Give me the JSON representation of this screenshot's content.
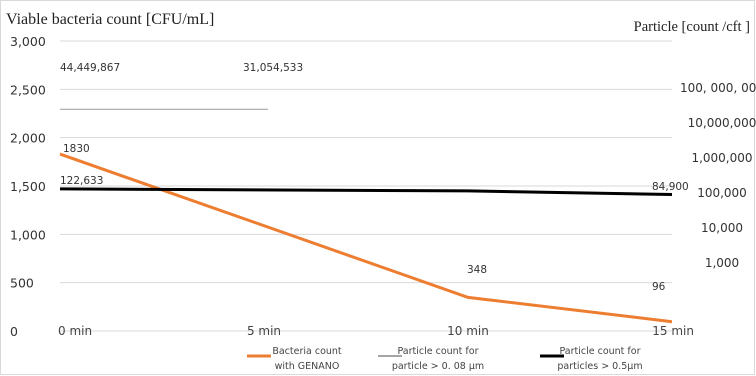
{
  "chart_data": {
    "type": "line",
    "left_axis": {
      "label": "Viable bacteria count [CFU/mL]",
      "ticks": [
        "0",
        "500",
        "1,000",
        "1,500",
        "2,000",
        "2,500",
        "3,000"
      ],
      "ylim": [
        0,
        3000
      ]
    },
    "right_axis": {
      "label": "Particle [count /cft ]",
      "scale": "log",
      "ticks": [
        "1,000",
        "10,000",
        "100,000",
        "1,000,000",
        "10,000,000",
        "100, 000, 000"
      ],
      "ylim": [
        200,
        300000000
      ]
    },
    "categories": [
      "0 min",
      "5 min",
      "10 min",
      "15 min"
    ],
    "series": [
      {
        "name": "Bacteria count with GENANO",
        "axis": "left",
        "color": "#ED7D31",
        "values": [
          1830,
          null,
          348,
          96
        ],
        "labels": [
          "1830",
          "",
          "348",
          "96"
        ]
      },
      {
        "name": "Particle count for particle > 0. 08 µm",
        "axis": "right",
        "color": "#A5A5A5",
        "values": [
          44449867,
          31054533,
          null,
          null
        ],
        "labels": [
          "44,449,867",
          "31,054,533",
          "",
          ""
        ]
      },
      {
        "name": "Particle count  for particles > 0.5µm",
        "axis": "right",
        "color": "#000000",
        "values": [
          122633,
          null,
          null,
          84900
        ],
        "labels": [
          "122,633",
          "",
          "",
          "84,900"
        ]
      }
    ],
    "legend": [
      {
        "line1": "Bacteria count",
        "line2": "with GENANO",
        "color": "#ED7D31"
      },
      {
        "line1": "Particle count for",
        "line2": "particle > 0. 08 µm",
        "color": "#A5A5A5"
      },
      {
        "line1": "Particle count  for",
        "line2": "particles > 0.5µm",
        "color": "#000000"
      }
    ],
    "legend_position": "bottom",
    "grid": "horizontal"
  }
}
